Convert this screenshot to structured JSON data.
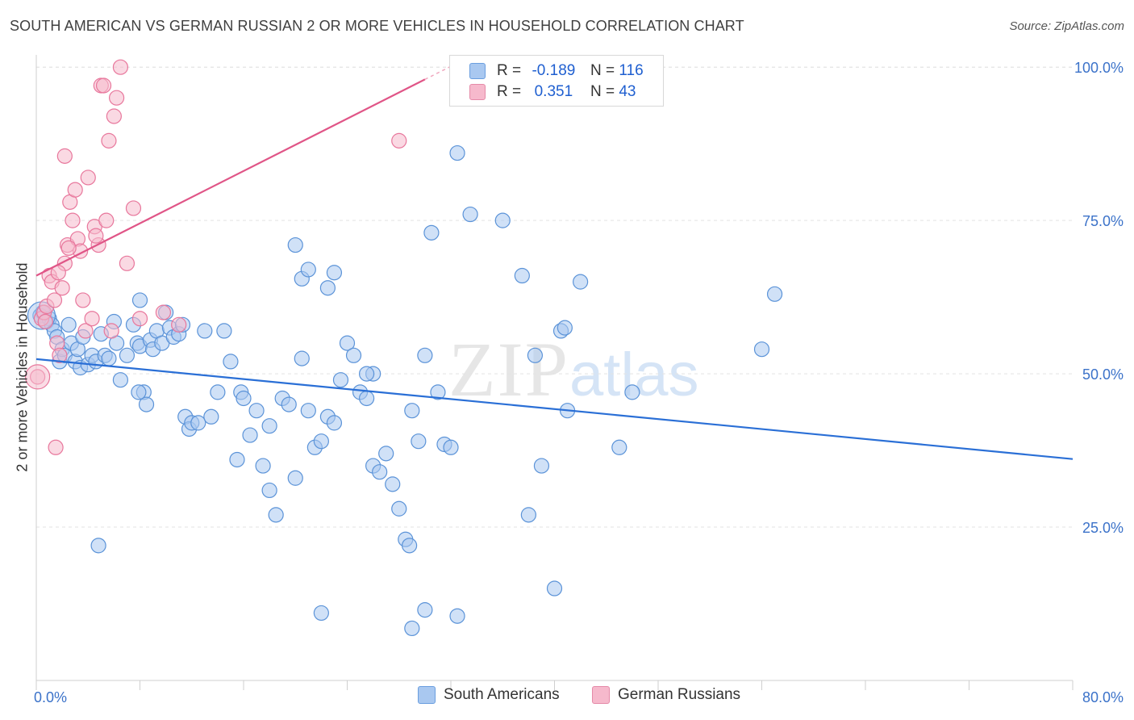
{
  "title": "SOUTH AMERICAN VS GERMAN RUSSIAN 2 OR MORE VEHICLES IN HOUSEHOLD CORRELATION CHART",
  "source": "Source: ZipAtlas.com",
  "watermark": {
    "zip": "ZIP",
    "atlas": "atlas"
  },
  "legend": {
    "rows": [
      {
        "r_label": "R =",
        "r_value": "-0.189",
        "n_label": "N =",
        "n_value": "116",
        "color": "#a9c8f0"
      },
      {
        "r_label": "R =",
        "r_value": "0.351",
        "n_label": "N =",
        "n_value": "43",
        "color": "#f6b9cc"
      }
    ]
  },
  "bottom_legend": [
    {
      "label": "South Americans",
      "color": "#a9c8f0"
    },
    {
      "label": "German Russians",
      "color": "#f6b9cc"
    }
  ],
  "chart_data": {
    "type": "scatter",
    "title": "SOUTH AMERICAN VS GERMAN RUSSIAN 2 OR MORE VEHICLES IN HOUSEHOLD CORRELATION CHART",
    "xlabel": "",
    "ylabel": "2 or more Vehicles in Household",
    "xlim": [
      0,
      80
    ],
    "ylim": [
      0,
      102
    ],
    "x_tick_labels": [
      "0.0%",
      "80.0%"
    ],
    "y_ticks": [
      25,
      50,
      75,
      100
    ],
    "y_tick_labels": [
      "25.0%",
      "50.0%",
      "75.0%",
      "100.0%"
    ],
    "grid": true,
    "legend_position": "top-center",
    "series": [
      {
        "name": "South Americans",
        "color": "#5b93d8",
        "fill": "#a9c8f0",
        "trend": {
          "x": [
            0,
            80
          ],
          "y": [
            52.4,
            36.1
          ],
          "color": "#2a6fd6"
        },
        "points": [
          [
            0.3,
            59.5
          ],
          [
            0.5,
            60
          ],
          [
            0.8,
            58.5
          ],
          [
            1,
            59
          ],
          [
            1.2,
            58
          ],
          [
            1.4,
            57
          ],
          [
            1.6,
            56
          ],
          [
            1.8,
            52
          ],
          [
            2,
            54
          ],
          [
            2.2,
            53
          ],
          [
            2.5,
            58
          ],
          [
            2.7,
            55
          ],
          [
            3,
            52
          ],
          [
            3.2,
            54
          ],
          [
            3.4,
            51
          ],
          [
            3.6,
            56
          ],
          [
            4,
            51.5
          ],
          [
            4.3,
            53
          ],
          [
            4.6,
            52
          ],
          [
            5,
            56.5
          ],
          [
            5.3,
            53
          ],
          [
            5.6,
            52.5
          ],
          [
            6,
            58.5
          ],
          [
            6.2,
            55
          ],
          [
            6.5,
            49
          ],
          [
            7,
            53
          ],
          [
            7.5,
            58
          ],
          [
            7.8,
            55
          ],
          [
            8,
            54.5
          ],
          [
            8.3,
            47
          ],
          [
            8.5,
            45
          ],
          [
            8.8,
            55.5
          ],
          [
            9,
            54
          ],
          [
            9.3,
            57
          ],
          [
            9.7,
            55
          ],
          [
            10,
            60
          ],
          [
            10.3,
            57.5
          ],
          [
            10.6,
            56
          ],
          [
            11,
            56.5
          ],
          [
            11.3,
            58
          ],
          [
            4.8,
            22
          ],
          [
            8,
            62
          ],
          [
            7.9,
            47
          ],
          [
            11.5,
            43
          ],
          [
            11.8,
            41
          ],
          [
            12,
            42
          ],
          [
            12.5,
            42
          ],
          [
            13.5,
            43
          ],
          [
            14,
            47
          ],
          [
            14.5,
            57
          ],
          [
            15,
            52
          ],
          [
            15.5,
            36
          ],
          [
            15.8,
            47
          ],
          [
            16,
            46
          ],
          [
            16.5,
            40
          ],
          [
            17,
            44
          ],
          [
            17.5,
            35
          ],
          [
            18,
            31
          ],
          [
            18.5,
            27
          ],
          [
            19,
            46
          ],
          [
            19.5,
            45
          ],
          [
            20,
            33
          ],
          [
            20.5,
            52.5
          ],
          [
            21,
            44
          ],
          [
            21.5,
            38
          ],
          [
            22,
            39
          ],
          [
            22.5,
            43
          ],
          [
            23,
            42
          ],
          [
            23.5,
            49
          ],
          [
            24,
            55
          ],
          [
            24.5,
            53
          ],
          [
            25,
            47
          ],
          [
            25.5,
            46
          ],
          [
            26,
            35
          ],
          [
            26.5,
            34
          ],
          [
            27,
            37
          ],
          [
            27.5,
            32
          ],
          [
            28,
            28
          ],
          [
            28.5,
            23
          ],
          [
            28.8,
            22
          ],
          [
            29,
            44
          ],
          [
            29.5,
            39
          ],
          [
            30,
            53
          ],
          [
            30.5,
            73
          ],
          [
            31,
            47
          ],
          [
            31.5,
            38.5
          ],
          [
            32,
            38
          ],
          [
            32.5,
            86
          ],
          [
            33.5,
            76
          ],
          [
            36,
            75
          ],
          [
            37.5,
            66
          ],
          [
            38,
            27
          ],
          [
            38.5,
            53
          ],
          [
            39,
            35
          ],
          [
            40,
            15
          ],
          [
            40.5,
            57
          ],
          [
            40.8,
            57.5
          ],
          [
            41,
            44
          ],
          [
            42,
            65
          ],
          [
            45,
            38
          ],
          [
            46,
            47
          ],
          [
            56,
            54
          ],
          [
            57,
            63
          ],
          [
            20,
            71
          ],
          [
            20.5,
            65.5
          ],
          [
            21,
            67
          ],
          [
            22.5,
            64
          ],
          [
            23,
            66.5
          ],
          [
            26,
            50
          ],
          [
            25.5,
            50
          ],
          [
            22,
            11
          ],
          [
            29,
            8.5
          ],
          [
            30,
            11.5
          ],
          [
            32.5,
            10.5
          ],
          [
            18,
            41.5
          ],
          [
            13,
            57
          ]
        ]
      },
      {
        "name": "German Russians",
        "color": "#e8779c",
        "fill": "#f6b9cc",
        "trend": {
          "x": [
            0,
            30
          ],
          "y": [
            66,
            98
          ],
          "color": "#e05587"
        },
        "points": [
          [
            0.1,
            49.5
          ],
          [
            0.4,
            59
          ],
          [
            0.6,
            60
          ],
          [
            0.8,
            61
          ],
          [
            1,
            66
          ],
          [
            1.2,
            65
          ],
          [
            1.4,
            62
          ],
          [
            1.6,
            55
          ],
          [
            1.8,
            53
          ],
          [
            2,
            64
          ],
          [
            2.2,
            68
          ],
          [
            2.4,
            71
          ],
          [
            2.6,
            78
          ],
          [
            2.8,
            75
          ],
          [
            3,
            80
          ],
          [
            3.2,
            72
          ],
          [
            3.4,
            70
          ],
          [
            3.6,
            62
          ],
          [
            3.8,
            57
          ],
          [
            4,
            82
          ],
          [
            4.3,
            59
          ],
          [
            4.5,
            74
          ],
          [
            4.8,
            71
          ],
          [
            5,
            97
          ],
          [
            5.2,
            97
          ],
          [
            5.4,
            75
          ],
          [
            5.6,
            88
          ],
          [
            5.8,
            57
          ],
          [
            6,
            92
          ],
          [
            6.2,
            95
          ],
          [
            6.5,
            100
          ],
          [
            7,
            68
          ],
          [
            7.5,
            77
          ],
          [
            8,
            59
          ],
          [
            9.8,
            60
          ],
          [
            11,
            58
          ],
          [
            28,
            88
          ],
          [
            2.2,
            85.5
          ],
          [
            1.5,
            38
          ],
          [
            0.7,
            58.5
          ],
          [
            1.7,
            66.5
          ],
          [
            4.6,
            72.5
          ],
          [
            2.5,
            70.5
          ]
        ]
      }
    ]
  }
}
